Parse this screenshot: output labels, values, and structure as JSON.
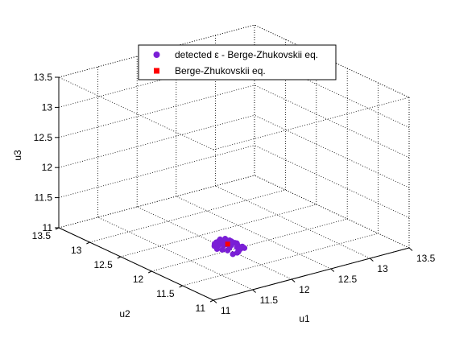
{
  "chart_data": {
    "type": "scatter",
    "projection": "3d",
    "grid": true,
    "box": true,
    "legend_position": "top-center",
    "xlabel": "u1",
    "ylabel": "u2",
    "zlabel": "u3",
    "xlim": [
      11,
      13.5
    ],
    "ylim": [
      11,
      13.5
    ],
    "zlim": [
      11,
      13.5
    ],
    "xticks": [
      "11",
      "11.5",
      "12",
      "12.5",
      "13",
      "13.5"
    ],
    "yticks": [
      "11",
      "11.5",
      "12",
      "12.5",
      "13",
      "13.5"
    ],
    "zticks": [
      "11",
      "11.5",
      "12",
      "12.5",
      "13",
      "13.5"
    ],
    "series": [
      {
        "name": "detected ε - Berge-Zhukovskii eq.",
        "marker": "circle",
        "color": "#7a1fd6",
        "points": [
          [
            11.58,
            11.42,
            11.36
          ],
          [
            11.62,
            11.4,
            11.38
          ],
          [
            11.66,
            11.43,
            11.37
          ],
          [
            11.7,
            11.45,
            11.39
          ],
          [
            11.56,
            11.48,
            11.4
          ],
          [
            11.6,
            11.5,
            11.42
          ],
          [
            11.64,
            11.52,
            11.44
          ],
          [
            11.68,
            11.48,
            11.41
          ],
          [
            11.72,
            11.5,
            11.4
          ],
          [
            11.76,
            11.46,
            11.38
          ],
          [
            11.54,
            11.54,
            11.39
          ],
          [
            11.58,
            11.57,
            11.43
          ],
          [
            11.62,
            11.59,
            11.46
          ],
          [
            11.66,
            11.56,
            11.48
          ],
          [
            11.7,
            11.54,
            11.45
          ],
          [
            11.74,
            11.56,
            11.42
          ],
          [
            11.78,
            11.52,
            11.37
          ],
          [
            11.52,
            11.6,
            11.38
          ],
          [
            11.56,
            11.63,
            11.41
          ],
          [
            11.6,
            11.64,
            11.45
          ],
          [
            11.64,
            11.62,
            11.5
          ],
          [
            11.68,
            11.6,
            11.47
          ],
          [
            11.72,
            11.62,
            11.43
          ],
          [
            11.76,
            11.58,
            11.39
          ],
          [
            11.55,
            11.68,
            11.38
          ],
          [
            11.59,
            11.7,
            11.42
          ],
          [
            11.63,
            11.69,
            11.46
          ],
          [
            11.67,
            11.66,
            11.44
          ],
          [
            11.71,
            11.68,
            11.4
          ],
          [
            11.6,
            11.74,
            11.37
          ],
          [
            11.65,
            11.73,
            11.41
          ],
          [
            11.69,
            11.72,
            11.38
          ],
          [
            11.62,
            11.61,
            11.48
          ],
          [
            11.61,
            11.55,
            11.45
          ]
        ]
      },
      {
        "name": "Berge-Zhukovskii eq.",
        "marker": "square",
        "color": "#ff0000",
        "points": [
          [
            11.64,
            11.58,
            11.43
          ]
        ]
      }
    ]
  }
}
